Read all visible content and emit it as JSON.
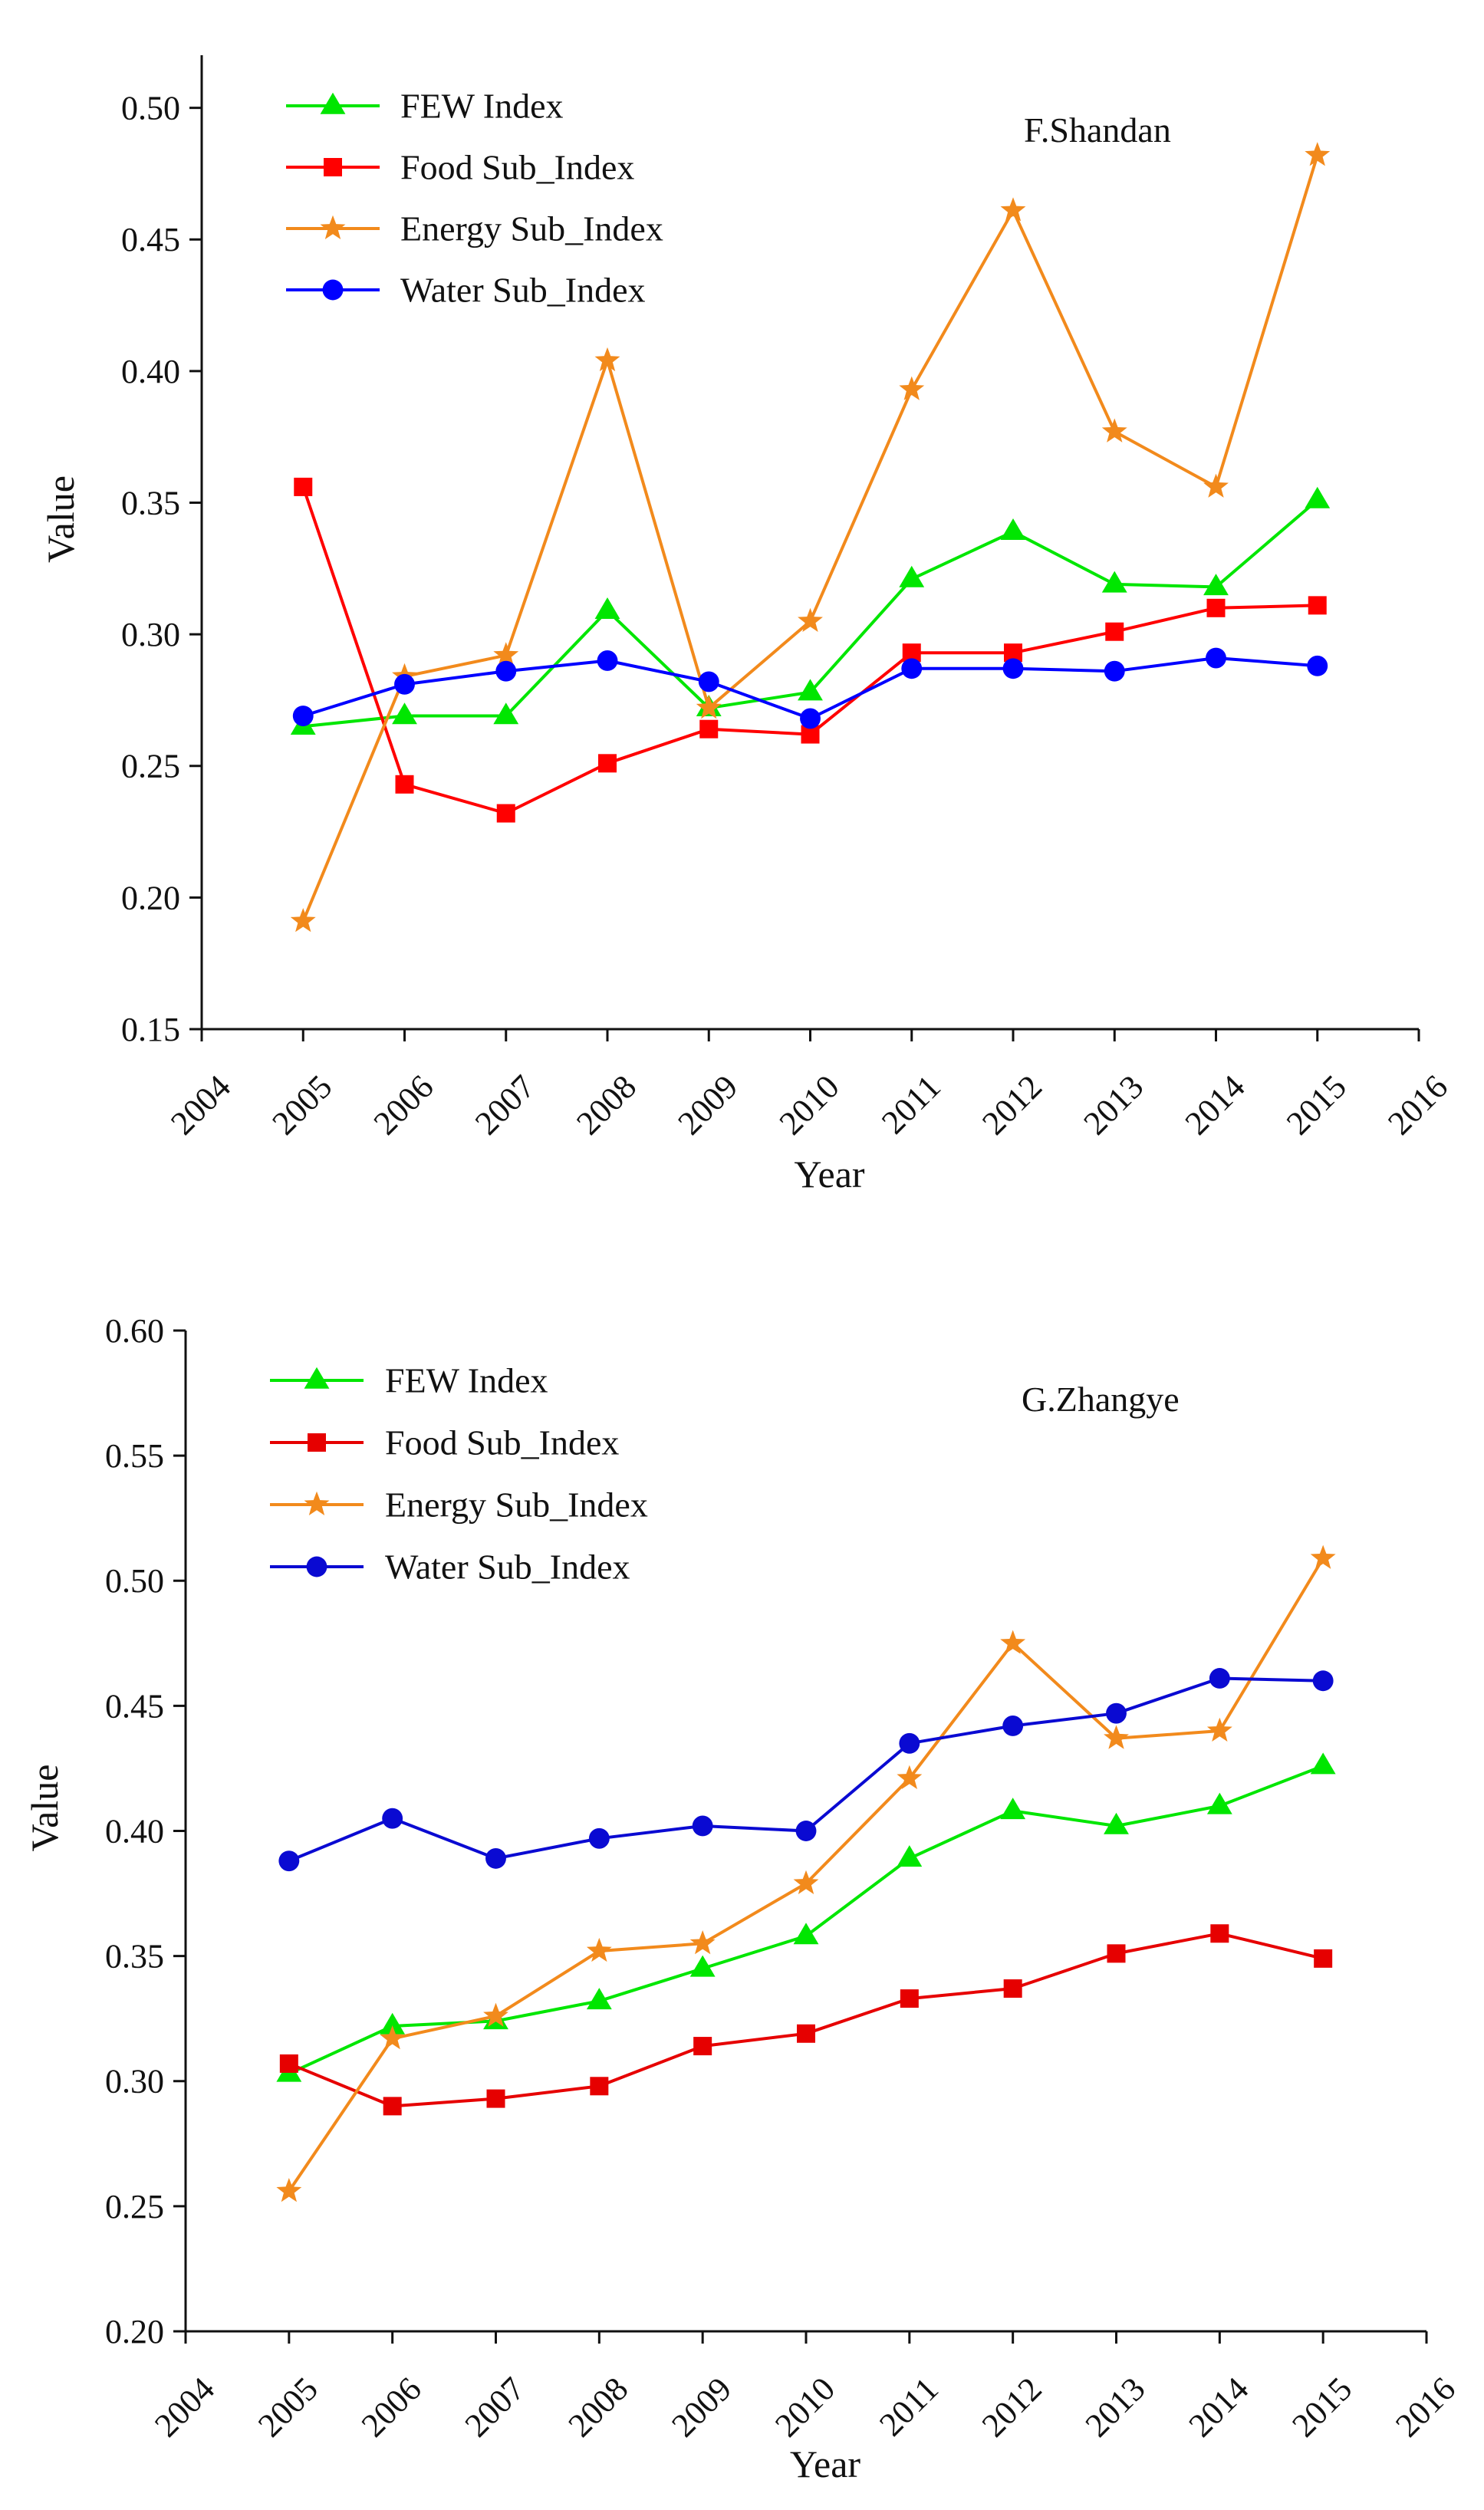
{
  "chart_data": [
    {
      "type": "line",
      "panel_label": "F.Shandan",
      "xlabel": "Year",
      "ylabel": "Value",
      "xlim": [
        2004,
        2016
      ],
      "ylim": [
        0.15,
        0.52
      ],
      "x_ticks": [
        2004,
        2005,
        2006,
        2007,
        2008,
        2009,
        2010,
        2011,
        2012,
        2013,
        2014,
        2015,
        2016
      ],
      "y_ticks": [
        0.15,
        0.2,
        0.25,
        0.3,
        0.35,
        0.4,
        0.45,
        0.5
      ],
      "x_tick_labels": [
        "2004",
        "2005",
        "2006",
        "2007",
        "2008",
        "2009",
        "2010",
        "2011",
        "2012",
        "2013",
        "2014",
        "2015",
        "2016"
      ],
      "y_tick_labels": [
        "0.15",
        "0.20",
        "0.25",
        "0.30",
        "0.35",
        "0.40",
        "0.45",
        "0.50"
      ],
      "grid": false,
      "legend": "top-left",
      "x": [
        2005,
        2006,
        2007,
        2008,
        2009,
        2010,
        2011,
        2012,
        2013,
        2014,
        2015
      ],
      "series": [
        {
          "name": "FEW Index",
          "color": "#00e600",
          "marker": "triangle",
          "values": [
            0.265,
            0.269,
            0.269,
            0.309,
            0.272,
            0.278,
            0.321,
            0.339,
            0.319,
            0.318,
            0.351
          ]
        },
        {
          "name": "Food Sub_Index",
          "color": "#ff0000",
          "marker": "square",
          "values": [
            0.356,
            0.243,
            0.232,
            0.251,
            0.264,
            0.262,
            0.293,
            0.293,
            0.301,
            0.31,
            0.311
          ]
        },
        {
          "name": "Energy Sub_Index",
          "color": "#f28a1c",
          "marker": "star",
          "values": [
            0.191,
            0.284,
            0.292,
            0.404,
            0.272,
            0.305,
            0.393,
            0.461,
            0.377,
            0.356,
            0.482
          ]
        },
        {
          "name": "Water Sub_Index",
          "color": "#0000ff",
          "marker": "circle",
          "values": [
            0.269,
            0.281,
            0.286,
            0.29,
            0.282,
            0.268,
            0.287,
            0.287,
            0.286,
            0.291,
            0.288
          ]
        }
      ]
    },
    {
      "type": "line",
      "panel_label": "G.Zhangye",
      "xlabel": "Year",
      "ylabel": "Value",
      "xlim": [
        2004,
        2016
      ],
      "ylim": [
        0.2,
        0.6
      ],
      "x_ticks": [
        2004,
        2005,
        2006,
        2007,
        2008,
        2009,
        2010,
        2011,
        2012,
        2013,
        2014,
        2015,
        2016
      ],
      "y_ticks": [
        0.2,
        0.25,
        0.3,
        0.35,
        0.4,
        0.45,
        0.5,
        0.55,
        0.6
      ],
      "x_tick_labels": [
        "2004",
        "2005",
        "2006",
        "2007",
        "2008",
        "2009",
        "2010",
        "2011",
        "2012",
        "2013",
        "2014",
        "2015",
        "2016"
      ],
      "y_tick_labels": [
        "0.20",
        "0.25",
        "0.30",
        "0.35",
        "0.40",
        "0.45",
        "0.50",
        "0.55",
        "0.60"
      ],
      "grid": false,
      "legend": "top-left",
      "x": [
        2005,
        2006,
        2007,
        2008,
        2009,
        2010,
        2011,
        2012,
        2013,
        2014,
        2015
      ],
      "series": [
        {
          "name": "FEW Index",
          "color": "#00e600",
          "marker": "triangle",
          "values": [
            0.303,
            0.322,
            0.324,
            0.332,
            0.345,
            0.358,
            0.389,
            0.408,
            0.402,
            0.41,
            0.426
          ]
        },
        {
          "name": "Food Sub_Index",
          "color": "#e60000",
          "marker": "square",
          "values": [
            0.307,
            0.29,
            0.293,
            0.298,
            0.314,
            0.319,
            0.333,
            0.337,
            0.351,
            0.359,
            0.349
          ]
        },
        {
          "name": "Energy Sub_Index",
          "color": "#f28a1c",
          "marker": "star",
          "values": [
            0.256,
            0.317,
            0.326,
            0.352,
            0.355,
            0.379,
            0.421,
            0.475,
            0.437,
            0.44,
            0.509
          ]
        },
        {
          "name": "Water Sub_Index",
          "color": "#0a0ad2",
          "marker": "circle",
          "values": [
            0.388,
            0.405,
            0.389,
            0.397,
            0.402,
            0.4,
            0.435,
            0.442,
            0.447,
            0.461,
            0.46
          ]
        }
      ]
    }
  ]
}
